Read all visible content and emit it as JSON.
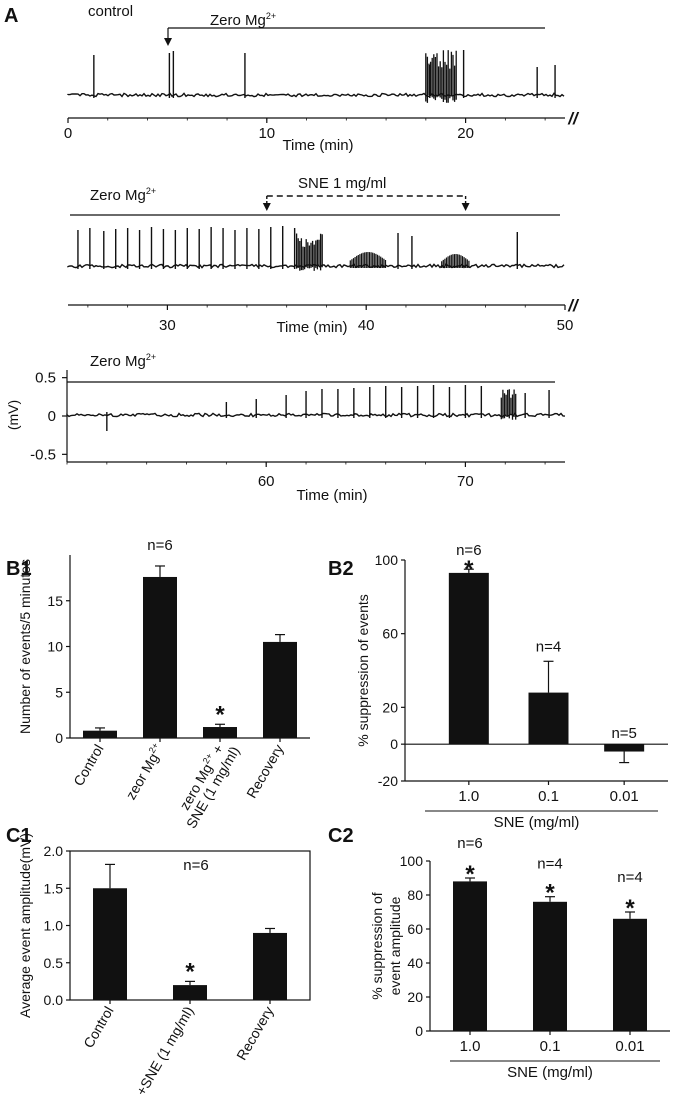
{
  "figure": {
    "panel_labels": [
      "A",
      "B1",
      "B2",
      "C1",
      "C2"
    ]
  },
  "chart_data": [
    {
      "type": "line",
      "panel": "A",
      "traces": [
        {
          "labels": {
            "control": "control",
            "zero_mg": "Zero Mg",
            "sup": "2+"
          },
          "x": {
            "label": "Time (min)",
            "range": [
              0,
              25
            ],
            "ticks": [
              0,
              10,
              20
            ],
            "break": "//"
          },
          "spikes_min": [
            1.3,
            5.1,
            5.3,
            8.9,
            18.2,
            19.9,
            23.6,
            24.5
          ],
          "burst_min": [
            18.0,
            19.6
          ]
        },
        {
          "labels": {
            "zero_mg": "Zero Mg",
            "sup": "2+",
            "drug": "SNE 1 mg/ml"
          },
          "x": {
            "label": "Time (min)",
            "range": [
              25,
              50
            ],
            "ticks": [
              30,
              40,
              50
            ],
            "break": "//"
          },
          "drug_window_min": [
            35,
            45
          ],
          "spikes_min": [
            25.5,
            26.1,
            26.8,
            27.4,
            28.0,
            28.6,
            29.2,
            29.8,
            30.4,
            31.0,
            31.6,
            32.2,
            32.8,
            33.4,
            34.0,
            34.6,
            35.2,
            35.8,
            36.4,
            41.6,
            42.3,
            47.6
          ],
          "burst_min": [
            36.5,
            37.8
          ]
        },
        {
          "labels": {
            "zero_mg": "Zero Mg",
            "sup": "2+"
          },
          "x": {
            "label": "Time (min)",
            "range": [
              50,
              75
            ],
            "ticks": [
              60,
              70
            ]
          },
          "y": {
            "label": "(mV)",
            "range": [
              -0.6,
              0.6
            ],
            "ticks": [
              "0.5",
              "0",
              "-0.5"
            ]
          },
          "spikes_min": [
            52.0,
            58.0,
            59.5,
            61.0,
            62.0,
            62.8,
            63.6,
            64.4,
            65.2,
            66.0,
            66.8,
            67.6,
            68.4,
            69.2,
            70.0,
            70.8,
            73.0,
            74.2
          ],
          "burst_min": [
            71.8,
            72.6
          ]
        }
      ]
    },
    {
      "type": "bar",
      "panel": "B1",
      "categories": [
        "Control",
        "zeor Mg",
        "zero Mg  + SNE (1 mg/ml)",
        "Recovery"
      ],
      "category_lines": [
        [
          "Control"
        ],
        [
          "zeor Mg",
          "2+"
        ],
        [
          "zero Mg",
          "2+",
          " +"
        ],
        [
          "Recovery"
        ]
      ],
      "category_line2": [
        "",
        "",
        "SNE (1 mg/ml)",
        ""
      ],
      "values": [
        0.8,
        17.6,
        1.2,
        10.5
      ],
      "errors": [
        0.3,
        1.2,
        0.3,
        0.8
      ],
      "ylabel": "Number of events/5 minutes",
      "ylim": [
        0,
        20
      ],
      "yticks": [
        0,
        5,
        10,
        15
      ],
      "annotations": [
        {
          "text": "n=6",
          "category": 1
        },
        {
          "text": "*",
          "category": 2
        }
      ]
    },
    {
      "type": "bar",
      "panel": "B2",
      "categories": [
        "1.0",
        "0.1",
        "0.01"
      ],
      "values": [
        93,
        28,
        -4
      ],
      "errors": [
        2,
        17,
        6
      ],
      "ylabel": "% suppression of events",
      "xlabel": "SNE (mg/ml)",
      "ylim": [
        -20,
        100
      ],
      "yticks": [
        -20,
        0,
        20,
        60,
        100
      ],
      "annotations": [
        {
          "text": "n=6",
          "category": 0
        },
        {
          "text": "*",
          "category": 0
        },
        {
          "text": "n=4",
          "category": 1
        },
        {
          "text": "n=5",
          "category": 2
        }
      ]
    },
    {
      "type": "bar",
      "panel": "C1",
      "categories": [
        "Control",
        "+SNE (1 mg/ml)",
        "Recovery"
      ],
      "values": [
        1.5,
        0.2,
        0.9
      ],
      "errors": [
        0.32,
        0.05,
        0.06
      ],
      "ylabel": "Average event amplitude(mV)",
      "ylim": [
        0,
        2.0
      ],
      "yticks": [
        "0.0",
        "0.5",
        "1.0",
        "1.5",
        "2.0"
      ],
      "annotations": [
        {
          "text": "n=6",
          "category": 1
        },
        {
          "text": "*",
          "category": 1
        }
      ]
    },
    {
      "type": "bar",
      "panel": "C2",
      "categories": [
        "1.0",
        "0.1",
        "0.01"
      ],
      "values": [
        88,
        76,
        66
      ],
      "errors": [
        2,
        3,
        4
      ],
      "ylabel": "% suppression of event amplitude",
      "ylabel_lines": [
        "% suppression of",
        "event amplitude"
      ],
      "xlabel": "SNE (mg/ml)",
      "ylim": [
        0,
        100
      ],
      "yticks": [
        0,
        20,
        40,
        60,
        80,
        100
      ],
      "annotations": [
        {
          "text": "n=6",
          "category": 0
        },
        {
          "text": "*",
          "category": 0
        },
        {
          "text": "n=4",
          "category": 1
        },
        {
          "text": "*",
          "category": 1
        },
        {
          "text": "n=4",
          "category": 2
        },
        {
          "text": "*",
          "category": 2
        }
      ]
    }
  ]
}
